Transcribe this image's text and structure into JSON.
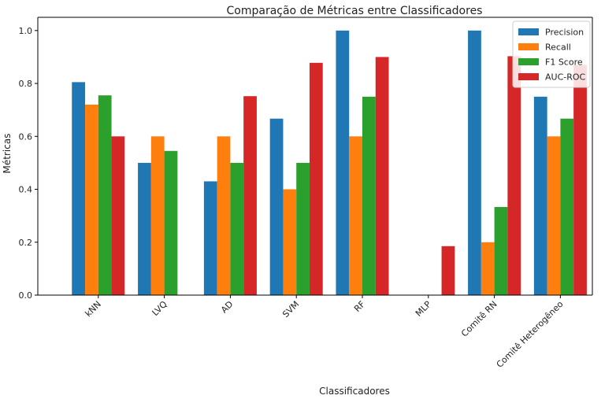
{
  "chart_data": {
    "type": "bar",
    "title": "Comparação de Métricas entre Classificadores",
    "xlabel": "Classificadores",
    "ylabel": "Métricas",
    "ylim": [
      0,
      1.05
    ],
    "yticks": [
      "0.0",
      "0.2",
      "0.4",
      "0.6",
      "0.8",
      "1.0"
    ],
    "categories": [
      "kNN",
      "LVQ",
      "AD",
      "SVM",
      "RF",
      "MLP",
      "Comitê RN",
      "Comitê Heterogêneo"
    ],
    "series": [
      {
        "name": "Precision",
        "color": "#1f77b4",
        "values": [
          0.805,
          0.5,
          0.43,
          0.667,
          1.0,
          0.0,
          1.0,
          0.75
        ]
      },
      {
        "name": "Recall",
        "color": "#ff7f0e",
        "values": [
          0.72,
          0.6,
          0.6,
          0.4,
          0.6,
          0.0,
          0.2,
          0.6
        ]
      },
      {
        "name": "F1 Score",
        "color": "#2ca02c",
        "values": [
          0.755,
          0.545,
          0.5,
          0.5,
          0.75,
          0.0,
          0.333,
          0.667
        ]
      },
      {
        "name": "AUC-ROC",
        "color": "#d62728",
        "values": [
          0.6,
          0.0,
          0.752,
          0.878,
          0.9,
          0.185,
          0.903,
          0.87
        ]
      }
    ],
    "legend_position": "top-right",
    "grid": false
  }
}
